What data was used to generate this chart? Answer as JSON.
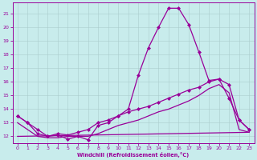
{
  "xlabel": "Windchill (Refroidissement éolien,°C)",
  "background_color": "#c8ecec",
  "line_color": "#990099",
  "grid_color": "#aaccaa",
  "xlim": [
    -0.5,
    23.5
  ],
  "ylim": [
    11.5,
    21.8
  ],
  "yticks": [
    12,
    13,
    14,
    15,
    16,
    17,
    18,
    19,
    20,
    21
  ],
  "xticks": [
    0,
    1,
    2,
    3,
    4,
    5,
    6,
    7,
    8,
    9,
    10,
    11,
    12,
    13,
    14,
    15,
    16,
    17,
    18,
    19,
    20,
    21,
    22,
    23
  ],
  "series": [
    {
      "name": "main_curve",
      "x": [
        0,
        1,
        2,
        3,
        4,
        5,
        6,
        7,
        8,
        9,
        10,
        11,
        12,
        13,
        14,
        15,
        16,
        17,
        18,
        19,
        20,
        21,
        22,
        23
      ],
      "y": [
        13.5,
        13.0,
        12.2,
        12.0,
        12.1,
        11.8,
        12.0,
        11.75,
        12.8,
        13.0,
        13.5,
        14.0,
        16.5,
        18.5,
        20.0,
        21.4,
        21.4,
        20.2,
        18.2,
        16.1,
        16.2,
        14.8,
        13.2,
        12.5
      ],
      "marker": "D",
      "markersize": 2.0,
      "linewidth": 0.9
    },
    {
      "name": "upper_diagonal",
      "x": [
        0,
        1,
        2,
        3,
        4,
        5,
        6,
        7,
        8,
        9,
        10,
        11,
        12,
        13,
        14,
        15,
        16,
        17,
        18,
        19,
        20,
        21,
        22,
        23
      ],
      "y": [
        13.5,
        13.0,
        12.5,
        12.0,
        12.2,
        12.1,
        12.3,
        12.5,
        13.0,
        13.2,
        13.5,
        13.8,
        14.0,
        14.2,
        14.5,
        14.8,
        15.1,
        15.4,
        15.6,
        16.0,
        16.2,
        15.8,
        13.2,
        12.5
      ],
      "marker": "D",
      "markersize": 2.0,
      "linewidth": 0.9
    },
    {
      "name": "lower_diagonal",
      "x": [
        0,
        1,
        2,
        3,
        4,
        5,
        6,
        7,
        8,
        9,
        10,
        11,
        12,
        13,
        14,
        15,
        16,
        17,
        18,
        19,
        20,
        21,
        22,
        23
      ],
      "y": [
        13.0,
        12.5,
        12.0,
        11.9,
        11.9,
        12.0,
        12.0,
        12.0,
        12.2,
        12.5,
        12.8,
        13.0,
        13.2,
        13.5,
        13.8,
        14.0,
        14.3,
        14.6,
        15.0,
        15.5,
        15.8,
        15.2,
        12.5,
        12.3
      ],
      "marker": null,
      "markersize": 0,
      "linewidth": 0.9
    },
    {
      "name": "flat_line",
      "x": [
        0,
        23
      ],
      "y": [
        12.0,
        12.3
      ],
      "marker": null,
      "markersize": 0,
      "linewidth": 0.9
    }
  ]
}
